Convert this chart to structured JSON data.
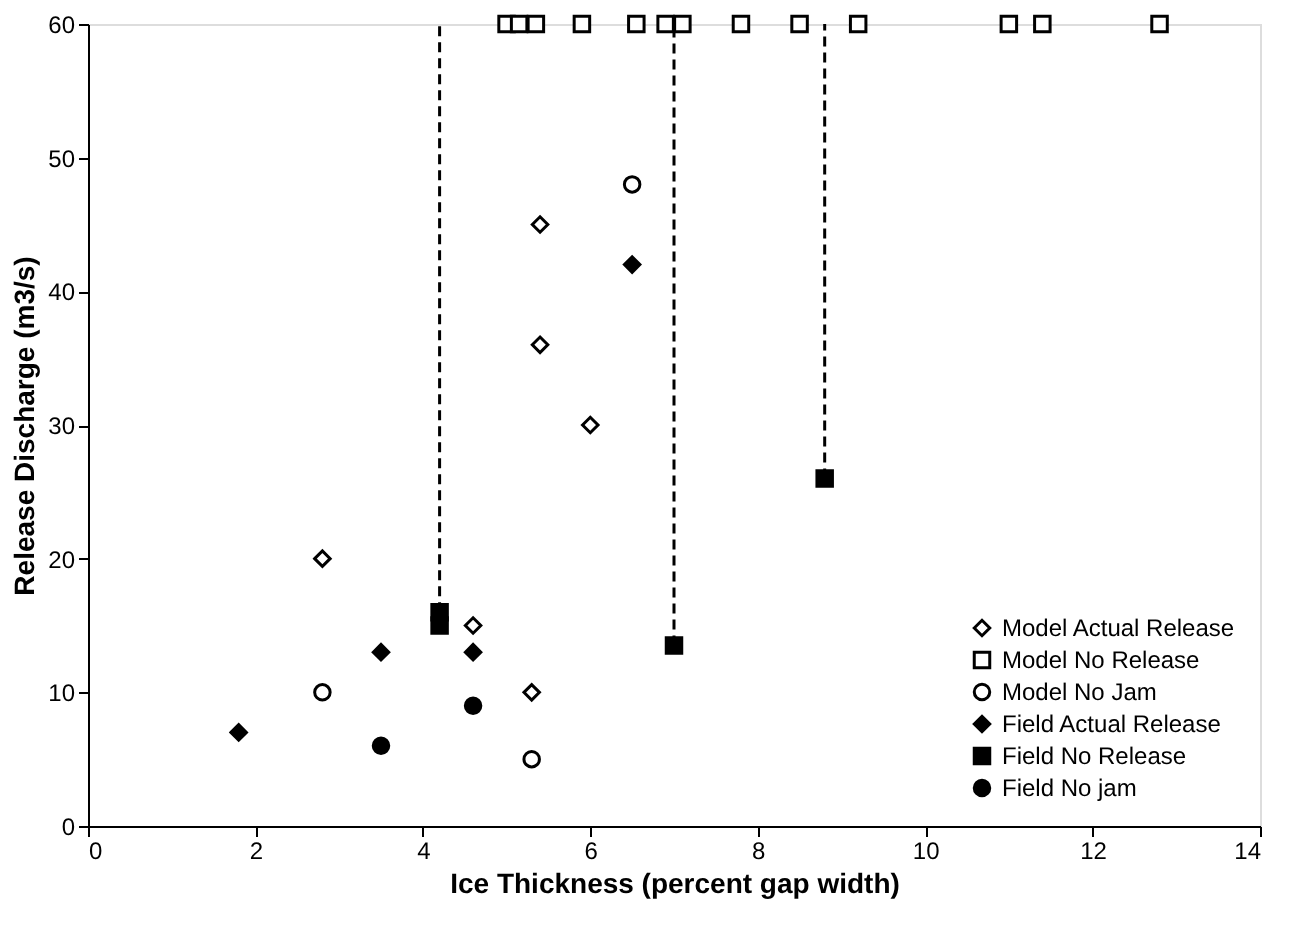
{
  "chart_data": {
    "type": "scatter",
    "xlabel": "Ice Thickness (percent gap width)",
    "ylabel": "Release Discharge (m3/s)",
    "xlim": [
      0,
      14
    ],
    "xticks": [
      0,
      2,
      4,
      6,
      8,
      10,
      12,
      14
    ],
    "ylim": [
      0,
      60
    ],
    "yticks": [
      0,
      10,
      20,
      30,
      40,
      50,
      60
    ],
    "grid": false,
    "legend": "bottom right",
    "series": [
      {
        "name": "Model Actual Release",
        "color": "#ffffff",
        "marker": "diamond",
        "x": [
          2.8,
          4.6,
          5.4,
          5.4,
          6.0,
          5.3
        ],
        "values": [
          20,
          15,
          45,
          36,
          30,
          10
        ]
      },
      {
        "name": "Model No Release",
        "color": "#ffffff",
        "marker": "square",
        "x": [
          5.0,
          5.15,
          5.35,
          5.9,
          6.55,
          6.9,
          7.1,
          7.8,
          8.5,
          9.2,
          11.0,
          11.4,
          12.8
        ],
        "values": [
          60,
          60,
          60,
          60,
          60,
          60,
          60,
          60,
          60,
          60,
          60,
          60,
          60
        ]
      },
      {
        "name": "Model No Jam",
        "color": "#ffffff",
        "marker": "circle",
        "x": [
          2.8,
          5.3,
          6.5
        ],
        "values": [
          10,
          5,
          48
        ]
      },
      {
        "name": "Field Actual Release",
        "color": "#000000",
        "marker": "diamond",
        "x": [
          1.8,
          3.5,
          4.6,
          6.5
        ],
        "values": [
          7,
          13,
          13,
          42
        ]
      },
      {
        "name": "Field No Release",
        "color": "#000000",
        "marker": "square",
        "x": [
          4.2,
          4.2,
          7.0,
          8.8
        ],
        "values": [
          15,
          16,
          13.5,
          26
        ]
      },
      {
        "name": "Field No jam",
        "color": "#000000",
        "marker": "circle",
        "x": [
          3.5,
          4.6
        ],
        "values": [
          6,
          9
        ]
      },
      {
        "type": "line",
        "color": "#000000",
        "line_style": "dashed",
        "x": [
          4.2,
          4.2
        ],
        "values": [
          16,
          60
        ]
      },
      {
        "type": "line",
        "color": "#000000",
        "line_style": "dashed",
        "x": [
          7.0,
          7.0
        ],
        "values": [
          13.5,
          60
        ]
      },
      {
        "type": "line",
        "color": "#000000",
        "line_style": "dashed",
        "x": [
          8.8,
          8.8
        ],
        "values": [
          26,
          60
        ]
      }
    ]
  }
}
